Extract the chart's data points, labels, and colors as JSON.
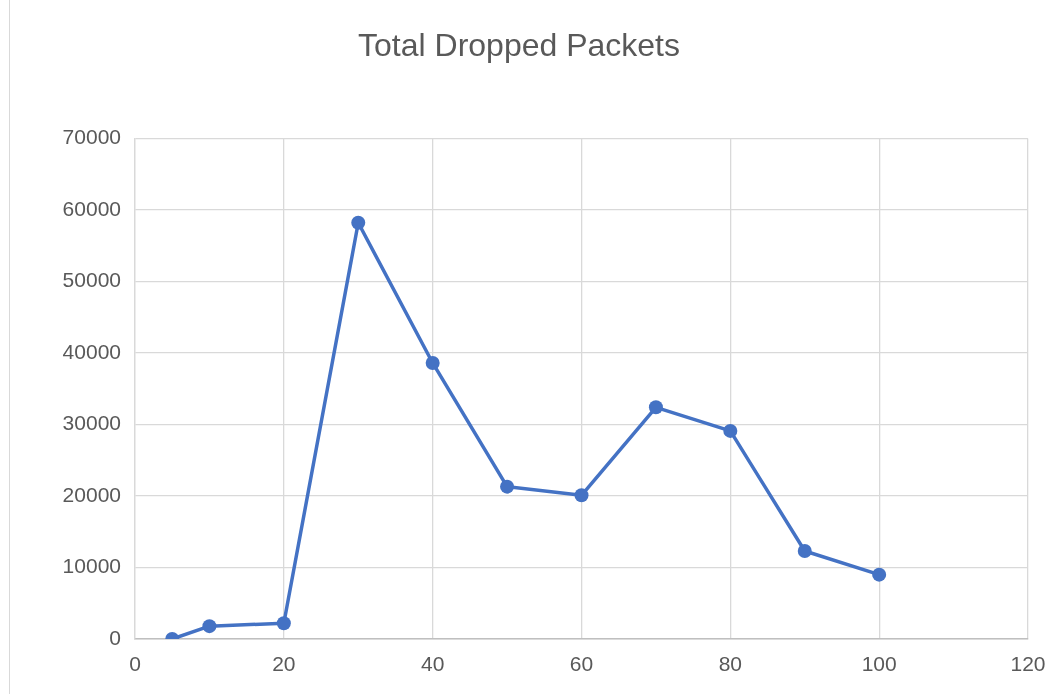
{
  "chart_data": {
    "type": "line",
    "title": "Total Dropped Packets",
    "x": [
      5,
      10,
      20,
      30,
      40,
      50,
      60,
      70,
      80,
      90,
      100
    ],
    "series": [
      {
        "color": "#4472c4",
        "values": [
          0,
          1800,
          2200,
          58200,
          38600,
          21300,
          20100,
          32400,
          29100,
          12300,
          9000
        ]
      }
    ],
    "xlim": [
      0,
      120
    ],
    "xticks": [
      0,
      20,
      40,
      60,
      80,
      100,
      120
    ],
    "ylim": [
      0,
      70000
    ],
    "yticks": [
      0,
      10000,
      20000,
      30000,
      40000,
      50000,
      60000,
      70000
    ],
    "grid": true,
    "marker": "circle",
    "line_style": "solid"
  }
}
